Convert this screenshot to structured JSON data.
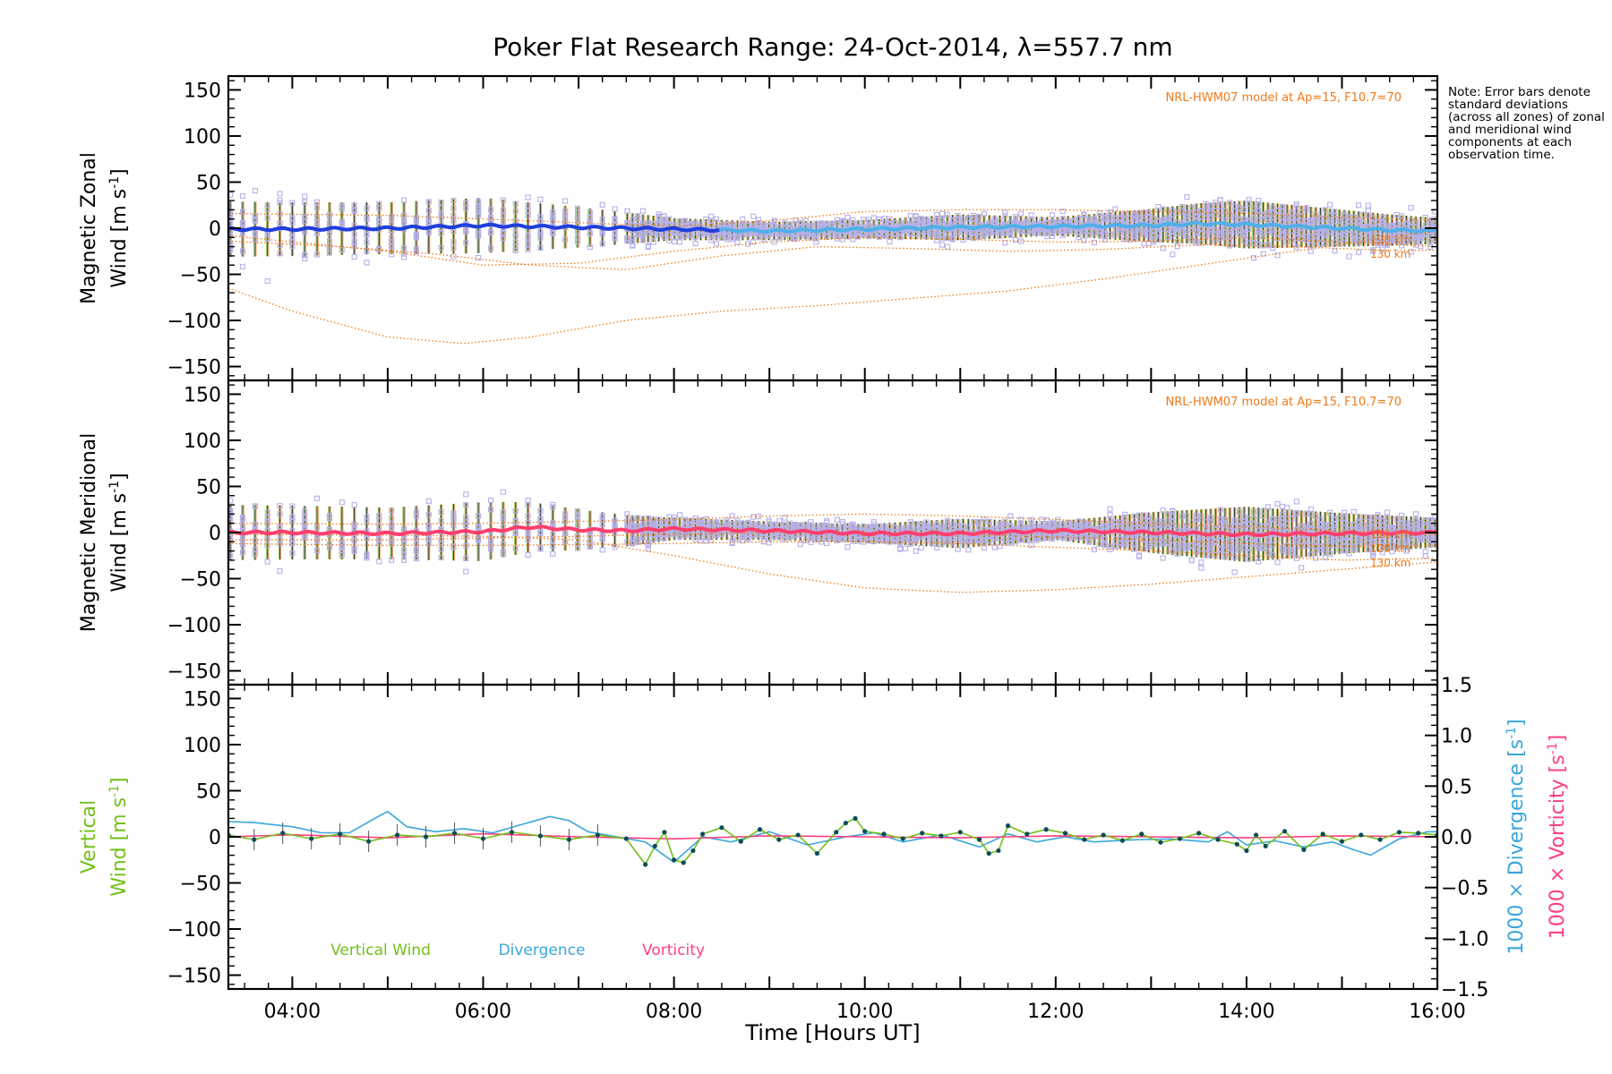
{
  "title": "Poker Flat Research Range: 24-Oct-2014, λ=557.7 nm",
  "note": "Note: Error bars denote standard deviations (across all zones) of zonal and meridional wind components at each observation time.",
  "colors": {
    "zonal": "#1f3fdc",
    "zonal_light": "#4fb0ea",
    "meridional": "#ff3f6e",
    "zones": "#b5b0ea",
    "model": "#f07a18",
    "vertical": "#73bf1a",
    "vertical_points": "#0b4b5a",
    "divergence": "#3aa6da",
    "vorticity": "#ff3f7f",
    "errorbar": "#222222"
  },
  "xaxis": {
    "label": "Time [Hours UT]",
    "range_hours": [
      3.33,
      16.0
    ],
    "ticks": [
      {
        "h": 4,
        "label": "04:00"
      },
      {
        "h": 6,
        "label": "06:00"
      },
      {
        "h": 8,
        "label": "08:00"
      },
      {
        "h": 10,
        "label": "10:00"
      },
      {
        "h": 12,
        "label": "12:00"
      },
      {
        "h": 14,
        "label": "14:00"
      },
      {
        "h": 16,
        "label": "16:00"
      }
    ]
  },
  "yticks": [
    "150",
    "100",
    "50",
    "0",
    "−50",
    "−100",
    "−150"
  ],
  "rticks": [
    "1.5",
    "1.0",
    "0.5",
    "0.0",
    "−0.5",
    "−1.0",
    "−1.5"
  ],
  "chart_data": [
    {
      "type": "line",
      "panel": "zonal",
      "ylabel_line1": "Magnetic Zonal",
      "ylabel_line2": "Wind [m s",
      "ylabel_sup": "-1",
      "ylabel_close": "]",
      "ylim": [
        -165,
        165
      ],
      "model_label": "NRL-HWM07 model at Ap=15, F10.7=70",
      "model_level_labels": [
        "120 km",
        "130 km"
      ],
      "series": [
        {
          "key": "mean",
          "t": [
            3.33,
            4,
            5,
            6,
            6.5,
            7,
            8,
            9,
            10,
            11,
            12,
            13,
            13.5,
            14,
            14.5,
            15,
            15.5,
            16
          ],
          "v": [
            -1,
            -1,
            0,
            3,
            2,
            1,
            -1,
            -3,
            -1,
            1,
            2,
            3,
            5,
            4,
            2,
            0,
            -2,
            -3
          ]
        },
        {
          "key": "std",
          "t": [
            3.33,
            5,
            6,
            7,
            8,
            9,
            10,
            11,
            12,
            13,
            14,
            15,
            16
          ],
          "v": [
            30,
            28,
            30,
            22,
            12,
            10,
            10,
            14,
            10,
            18,
            26,
            20,
            14
          ]
        },
        {
          "key": "model_top",
          "t": [
            3.33,
            5,
            6,
            7,
            8,
            9,
            10,
            11,
            12,
            13,
            14,
            15,
            16
          ],
          "v": [
            16,
            14,
            10,
            6,
            2,
            8,
            18,
            20,
            20,
            18,
            16,
            12,
            8
          ]
        },
        {
          "key": "model_a",
          "t": [
            3.33,
            5,
            6,
            7,
            8,
            9,
            10,
            11,
            12,
            13,
            14,
            15,
            16
          ],
          "v": [
            -8,
            -25,
            -40,
            -38,
            -25,
            -15,
            -10,
            -12,
            -15,
            -14,
            -10,
            -15,
            -20
          ]
        },
        {
          "key": "model_b",
          "t": [
            3.33,
            4.5,
            5.5,
            6.5,
            7.5,
            8.5,
            9.5,
            10.5,
            11.5,
            12.5,
            13.5,
            14.5,
            15.5,
            16
          ],
          "v": [
            -14,
            -20,
            -28,
            -40,
            -45,
            -30,
            -20,
            -22,
            -25,
            -23,
            -18,
            -20,
            -24,
            -24
          ]
        },
        {
          "key": "model_low",
          "t": [
            3.33,
            4,
            5,
            5.8,
            6.5,
            7.5,
            8.5,
            9.5,
            10.5,
            11.5,
            12.5,
            13.5,
            14.5,
            15.5,
            16
          ],
          "v": [
            -65,
            -90,
            -118,
            -125,
            -118,
            -100,
            -90,
            -84,
            -76,
            -68,
            -55,
            -40,
            -25,
            -10,
            -3
          ]
        }
      ]
    },
    {
      "type": "line",
      "panel": "meridional",
      "ylabel_line1": "Magnetic Meridional",
      "ylabel_line2": "Wind [m s",
      "ylabel_sup": "-1",
      "ylabel_close": "]",
      "ylim": [
        -165,
        165
      ],
      "model_label": "NRL-HWM07 model at Ap=15, F10.7=70",
      "model_level_labels": [
        "110 km",
        "120 km",
        "130 km"
      ],
      "series": [
        {
          "key": "mean",
          "t": [
            3.33,
            4,
            5,
            6,
            6.5,
            7,
            7.5,
            8,
            9,
            10,
            11,
            12,
            13,
            14,
            15,
            16
          ],
          "v": [
            0,
            0,
            -1,
            1,
            6,
            3,
            2,
            4,
            2,
            -1,
            -1,
            2,
            0,
            -2,
            -1,
            0
          ]
        },
        {
          "key": "std",
          "t": [
            3.33,
            5,
            6,
            7,
            8,
            9,
            10,
            11,
            12,
            13,
            14,
            15,
            16
          ],
          "v": [
            30,
            28,
            32,
            22,
            12,
            10,
            10,
            16,
            10,
            22,
            30,
            22,
            16
          ]
        },
        {
          "key": "model_top",
          "t": [
            3.33,
            5,
            6,
            7,
            8,
            9,
            10,
            11,
            12,
            13,
            14,
            15,
            16
          ],
          "v": [
            10,
            9,
            10,
            12,
            14,
            18,
            20,
            18,
            14,
            10,
            6,
            2,
            -2
          ]
        },
        {
          "key": "model_a",
          "t": [
            3.33,
            5,
            6,
            7,
            8,
            9,
            10,
            11,
            12,
            13,
            14,
            15,
            16
          ],
          "v": [
            -8,
            -8,
            -6,
            -4,
            -2,
            0,
            0,
            -2,
            -5,
            -8,
            -12,
            -15,
            -14
          ]
        },
        {
          "key": "model_b",
          "t": [
            3.33,
            5,
            6,
            7,
            8,
            9,
            10,
            11,
            12,
            13,
            14,
            15,
            16
          ],
          "v": [
            -12,
            -14,
            -14,
            -13,
            -12,
            -10,
            -10,
            -12,
            -16,
            -20,
            -25,
            -30,
            -28
          ]
        },
        {
          "key": "model_low",
          "t": [
            3.33,
            4,
            5,
            6,
            7,
            8,
            9,
            10,
            11,
            12,
            13,
            14,
            15,
            16
          ],
          "v": [
            -2,
            -2,
            -3,
            -4,
            -8,
            -25,
            -45,
            -60,
            -65,
            -62,
            -56,
            -48,
            -40,
            -32
          ]
        }
      ]
    },
    {
      "type": "line",
      "panel": "vertical",
      "ylabel_line1": "Vertical",
      "ylabel_line2": "Wind [m s",
      "ylabel_sup": "-1",
      "ylabel_close": "]",
      "ylim": [
        -165,
        165
      ],
      "y2label_text": "1000 × Divergence [s",
      "y2label_sup": "-1",
      "y2label_close": "]",
      "y3label_text": "1000 × Vorticity [s",
      "y3label_sup": "-1",
      "y3label_close": "]",
      "y2lim": [
        -1.5,
        1.5
      ],
      "legend": [
        "Vertical Wind",
        "Divergence",
        "Vorticity"
      ],
      "series": [
        {
          "name": "Vertical Wind",
          "t": [
            3.33,
            3.6,
            3.9,
            4.2,
            4.5,
            4.8,
            5.1,
            5.4,
            5.7,
            6.0,
            6.3,
            6.6,
            6.9,
            7.2,
            7.5,
            7.7,
            7.8,
            7.9,
            8.0,
            8.1,
            8.2,
            8.3,
            8.5,
            8.7,
            8.9,
            9.1,
            9.3,
            9.5,
            9.7,
            9.8,
            9.9,
            10.0,
            10.2,
            10.4,
            10.6,
            10.8,
            11.0,
            11.2,
            11.3,
            11.4,
            11.5,
            11.7,
            11.9,
            12.1,
            12.3,
            12.5,
            12.7,
            12.9,
            13.1,
            13.3,
            13.5,
            13.7,
            13.9,
            14.0,
            14.1,
            14.2,
            14.4,
            14.6,
            14.8,
            15.0,
            15.2,
            15.4,
            15.6,
            15.8,
            16.0
          ],
          "v": [
            2,
            -3,
            4,
            -2,
            3,
            -5,
            2,
            0,
            4,
            -2,
            5,
            1,
            -3,
            2,
            -2,
            -30,
            -10,
            5,
            -25,
            -28,
            -15,
            3,
            10,
            -5,
            8,
            -3,
            2,
            -18,
            5,
            15,
            20,
            6,
            3,
            -2,
            4,
            1,
            5,
            -3,
            -18,
            -15,
            12,
            3,
            8,
            4,
            -3,
            2,
            -4,
            3,
            -6,
            -2,
            4,
            -3,
            -8,
            -15,
            2,
            -10,
            6,
            -14,
            3,
            -5,
            2,
            -3,
            5,
            4,
            2
          ]
        },
        {
          "name": "Divergence",
          "t": [
            3.33,
            3.6,
            3.8,
            4.0,
            4.3,
            4.6,
            4.9,
            5.0,
            5.2,
            5.5,
            5.8,
            6.1,
            6.4,
            6.7,
            6.9,
            7.1,
            7.4,
            7.7,
            8.0,
            8.3,
            8.6,
            9.0,
            9.4,
            9.8,
            10.1,
            10.4,
            10.8,
            11.2,
            11.5,
            11.8,
            12.1,
            12.4,
            12.8,
            13.2,
            13.6,
            13.8,
            14.0,
            14.3,
            14.6,
            14.9,
            15.1,
            15.3,
            15.6,
            15.9,
            16.0
          ],
          "v": [
            0.15,
            0.14,
            0.12,
            0.1,
            0.04,
            0.04,
            0.2,
            0.25,
            0.1,
            0.05,
            0.08,
            0.04,
            0.12,
            0.2,
            0.16,
            0.05,
            0.0,
            -0.05,
            -0.25,
            0.0,
            -0.05,
            0.05,
            -0.08,
            0.0,
            0.04,
            -0.05,
            0.02,
            -0.1,
            0.03,
            -0.05,
            0.0,
            -0.05,
            -0.03,
            -0.02,
            -0.05,
            0.05,
            -0.08,
            -0.04,
            -0.1,
            -0.05,
            -0.12,
            -0.18,
            -0.02,
            0.05,
            0.05
          ]
        },
        {
          "name": "Vorticity",
          "t": [
            3.33,
            4,
            5,
            6,
            7,
            8,
            9,
            10,
            11,
            12,
            13,
            14,
            15,
            16
          ],
          "v": [
            0.0,
            0.02,
            -0.01,
            0.03,
            0.0,
            -0.02,
            0.01,
            0.0,
            -0.01,
            0.01,
            0.0,
            -0.01,
            0.01,
            0.0
          ]
        }
      ]
    }
  ]
}
